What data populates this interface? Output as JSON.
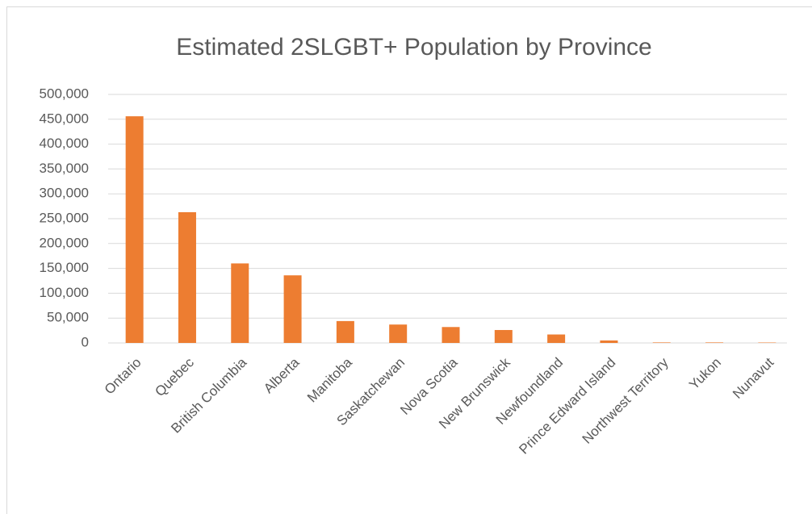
{
  "chart_data": {
    "type": "bar",
    "title": "Estimated 2SLGBT+ Population by Province",
    "categories": [
      "Ontario",
      "Quebec",
      "British Columbia",
      "Alberta",
      "Manitoba",
      "Saskatchewan",
      "Nova Scotia",
      "New Brunswick",
      "Newfoundland",
      "Prince Edward Island",
      "Northwest Territory",
      "Yukon",
      "Nunavut"
    ],
    "values": [
      456000,
      263000,
      160000,
      136000,
      44000,
      37000,
      32000,
      26000,
      17000,
      5000,
      1000,
      1000,
      800
    ],
    "color": "#ed7d31",
    "ylim": [
      0,
      500000
    ],
    "yticks": [
      0,
      {
        "value": 50000,
        "label": "50,000"
      },
      {
        "value": 100000,
        "label": "100,000"
      },
      {
        "value": 150000,
        "label": "150,000"
      },
      {
        "value": 200000,
        "label": "200,000"
      },
      {
        "value": 250000,
        "label": "250,000"
      },
      {
        "value": 300000,
        "label": "300,000"
      },
      {
        "value": 350000,
        "label": "350,000"
      },
      {
        "value": 400000,
        "label": "400,000"
      },
      {
        "value": 450000,
        "label": "450,000"
      },
      {
        "value": 500000,
        "label": "500,000"
      }
    ],
    "grid": true
  }
}
